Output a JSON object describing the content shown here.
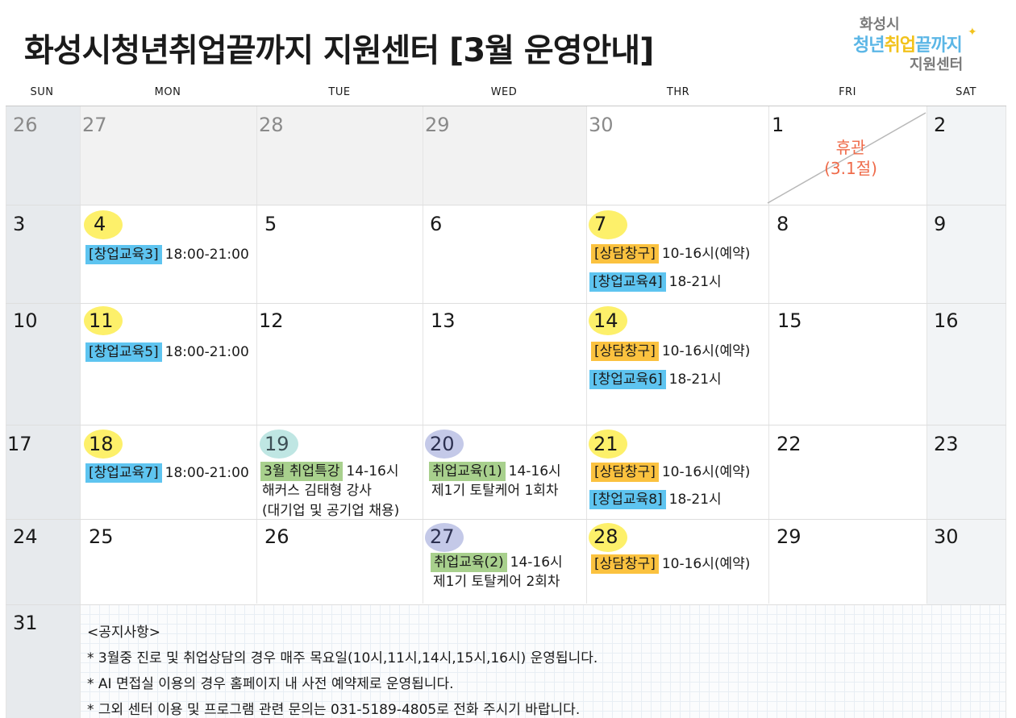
{
  "header": {
    "title": "화성시청년취업끝까지 지원센터 [3월 운영안내]",
    "logo_line1": "화성시",
    "logo_line2a": "청년",
    "logo_line2b": "취업",
    "logo_line2c": "끝까지",
    "logo_line3": "지원센터"
  },
  "weekdays": [
    "SUN",
    "MON",
    "TUE",
    "WED",
    "THR",
    "FRI",
    "SAT"
  ],
  "days": {
    "r1": [
      "26",
      "27",
      "28",
      "29",
      "30",
      "1",
      "2"
    ],
    "r2": [
      "3",
      "4",
      "5",
      "6",
      "7",
      "8",
      "9"
    ],
    "r3": [
      "10",
      "11",
      "12",
      "13",
      "14",
      "15",
      "16"
    ],
    "r4": [
      "17",
      "18",
      "19",
      "20",
      "21",
      "22",
      "23"
    ],
    "r5": [
      "24",
      "25",
      "26",
      "27",
      "28",
      "29",
      "30"
    ],
    "r6": [
      "31"
    ]
  },
  "closed": {
    "line1": "휴관",
    "line2": "(3.1절)"
  },
  "events": {
    "e4": {
      "tag": "[창업교육3]",
      "time": "18:00-21:00"
    },
    "e7a": {
      "tag": "[상담창구]",
      "time": "10-16시(예약)"
    },
    "e7b": {
      "tag": "[창업교육4]",
      "time": "18-21시"
    },
    "e11": {
      "tag": "[창업교육5]",
      "time": "18:00-21:00"
    },
    "e14a": {
      "tag": "[상담창구]",
      "time": "10-16시(예약)"
    },
    "e14b": {
      "tag": "[창업교육6]",
      "time": "18-21시"
    },
    "e18": {
      "tag": "[창업교육7]",
      "time": "18:00-21:00"
    },
    "e19": {
      "tag": "3월 취업특강",
      "time": "14-16시",
      "sub1": "해커스 김태형 강사",
      "sub2": "(대기업 및 공기업 채용)"
    },
    "e20": {
      "tag": "취업교육(1)",
      "time": "14-16시",
      "sub1": "제1기 토탈케어 1회차"
    },
    "e21a": {
      "tag": "[상담창구]",
      "time": "10-16시(예약)"
    },
    "e21b": {
      "tag": "[창업교육8]",
      "time": "18-21시"
    },
    "e27": {
      "tag": "취업교육(2)",
      "time": "14-16시",
      "sub1": "제1기 토탈케어 2회차"
    },
    "e28": {
      "tag": "[상담창구]",
      "time": "10-16시(예약)"
    }
  },
  "notice": {
    "heading": "<공지사항>",
    "lines": [
      "* 3월중 진로 및 취업상담의 경우 매주 목요일(10시,11시,14시,15시,16시) 운영됩니다.",
      "* AI 면접실 이용의 경우 홈페이지 내 사전 예약제로 운영됩니다.",
      "* 그외 센터 이용 및 프로그램 관련 문의는 031-5189-4805로 전화 주시기 바랍니다."
    ]
  },
  "colors": {
    "title": "#1a1a1a",
    "highlight_yellow": "#fdf06a",
    "highlight_teal": "#bfe6e3",
    "highlight_lavender": "#c4c9e8",
    "tag_blue": "#5ec4f0",
    "tag_orange": "#fbc23f",
    "tag_green": "#a8d08d",
    "closed_text": "#ef6b4a"
  }
}
